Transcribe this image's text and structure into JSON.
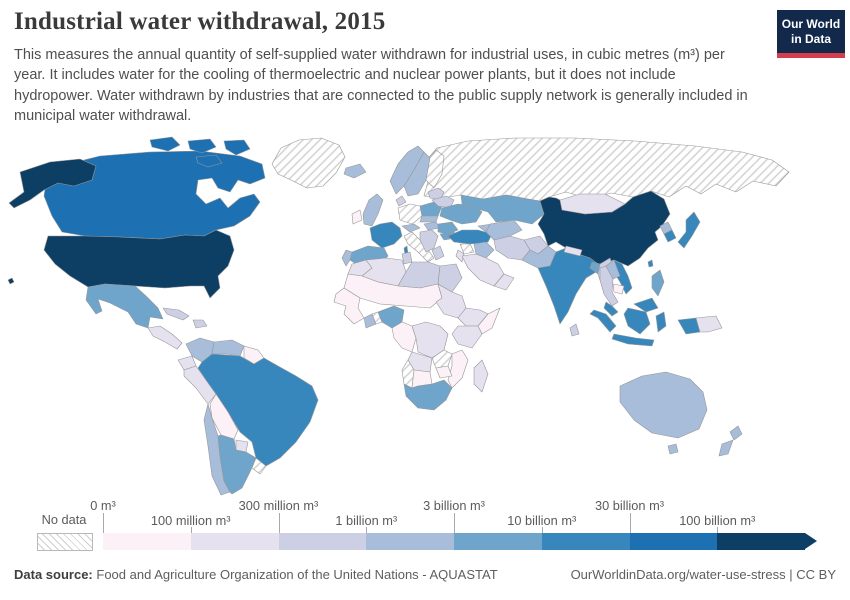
{
  "header": {
    "title": "Industrial water withdrawal, 2015",
    "subtitle": "This measures the annual quantity of self-supplied water withdrawn for industrial uses, in cubic metres (m³) per year. It includes water for the cooling of thermoelectric and nuclear power plants, but it does not include hydropower. Water withdrawn by industries that are connected to the public supply network is generally included in municipal water withdrawal.",
    "logo": {
      "line1": "Our World",
      "line2": "in Data",
      "navy": "#12294b",
      "red": "#d23e4e"
    }
  },
  "legend": {
    "no_data_label": "No data",
    "ticks": [
      {
        "label": "0 m³",
        "row": "top"
      },
      {
        "label": "100 million m³",
        "row": "bottom"
      },
      {
        "label": "300 million m³",
        "row": "top"
      },
      {
        "label": "1 billion m³",
        "row": "bottom"
      },
      {
        "label": "3 billion m³",
        "row": "top"
      },
      {
        "label": "10 billion m³",
        "row": "bottom"
      },
      {
        "label": "30 billion m³",
        "row": "top"
      },
      {
        "label": "100 billion m³",
        "row": "bottom"
      }
    ],
    "bin_colors": [
      "#fcf1f7",
      "#e6e1ef",
      "#cdcfe5",
      "#a7bdda",
      "#6fa4cb",
      "#3787bd",
      "#1d71b3",
      "#0d3e64"
    ]
  },
  "footer": {
    "source_label": "Data source:",
    "source_text": "Food and Agriculture Organization of the United Nations - AQUASTAT",
    "link_text": "OurWorldinData.org/water-use-stress",
    "separator": "|",
    "license": "CC BY"
  },
  "chart_data": {
    "type": "choropleth_map",
    "title": "Industrial water withdrawal, 2015",
    "unit": "m³ per year",
    "year": 2015,
    "bin_ranges": [
      "0–100 million m³",
      "100–300 million m³",
      "300 million–1 billion m³",
      "1–3 billion m³",
      "3–10 billion m³",
      "10–30 billion m³",
      "30–100 billion m³",
      "100 billion m³ and over"
    ],
    "no_data_style": "white with gray diagonal hatching",
    "countries": {
      "usa": {
        "name": "United States",
        "bin": 8
      },
      "canada": {
        "name": "Canada",
        "bin": 7
      },
      "greenland": {
        "name": "Greenland",
        "bin": "no-data"
      },
      "mexico": {
        "name": "Mexico",
        "bin": 5
      },
      "central-america": {
        "name": "Central America",
        "bin": 2
      },
      "cuba": {
        "name": "Cuba",
        "bin": 3
      },
      "hispaniola": {
        "name": "Hispaniola",
        "bin": 3
      },
      "colombia": {
        "name": "Colombia",
        "bin": 4
      },
      "venezuela": {
        "name": "Venezuela",
        "bin": 4
      },
      "guyanas": {
        "name": "Guyanas",
        "bin": 1
      },
      "ecuador": {
        "name": "Ecuador",
        "bin": 2
      },
      "peru": {
        "name": "Peru",
        "bin": 2
      },
      "brazil": {
        "name": "Brazil",
        "bin": 6
      },
      "bolivia": {
        "name": "Bolivia",
        "bin": 1
      },
      "paraguay": {
        "name": "Paraguay",
        "bin": 2
      },
      "chile": {
        "name": "Chile",
        "bin": 4
      },
      "argentina": {
        "name": "Argentina",
        "bin": 5
      },
      "uruguay": {
        "name": "Uruguay",
        "bin": "no-data"
      },
      "iceland": {
        "name": "Iceland",
        "bin": 4
      },
      "uk": {
        "name": "United Kingdom",
        "bin": 4
      },
      "ireland": {
        "name": "Ireland",
        "bin": 1
      },
      "norway": {
        "name": "Norway",
        "bin": 4
      },
      "sweden": {
        "name": "Sweden",
        "bin": 4
      },
      "finland": {
        "name": "Finland",
        "bin": "no-data"
      },
      "denmark": {
        "name": "Denmark",
        "bin": 3
      },
      "germany": {
        "name": "Germany",
        "bin": "no-data"
      },
      "france": {
        "name": "France",
        "bin": 6
      },
      "spain": {
        "name": "Spain",
        "bin": 5
      },
      "portugal": {
        "name": "Portugal",
        "bin": 4
      },
      "italy": {
        "name": "Italy",
        "bin": "no-data"
      },
      "central-europe": {
        "name": "Switzerland / Austria",
        "bin": 4
      },
      "poland": {
        "name": "Poland",
        "bin": 5
      },
      "czech-slovakia": {
        "name": "Czechia / Slovakia",
        "bin": 4
      },
      "hungary": {
        "name": "Hungary",
        "bin": 4
      },
      "balkans": {
        "name": "Western Balkans",
        "bin": 3
      },
      "greece": {
        "name": "Greece",
        "bin": 3
      },
      "romania": {
        "name": "Romania",
        "bin": 5
      },
      "bulgaria": {
        "name": "Bulgaria",
        "bin": 5
      },
      "baltics": {
        "name": "Baltic states",
        "bin": 3
      },
      "belarus": {
        "name": "Belarus",
        "bin": 3
      },
      "ukraine": {
        "name": "Ukraine",
        "bin": 5
      },
      "turkey": {
        "name": "Turkey",
        "bin": 6
      },
      "caucasus": {
        "name": "Caucasus",
        "bin": 4
      },
      "syria": {
        "name": "Syria",
        "bin": "no-data"
      },
      "iraq": {
        "name": "Iraq",
        "bin": 4
      },
      "iran": {
        "name": "Iran",
        "bin": 3
      },
      "saudi-arabia": {
        "name": "Saudi Arabia",
        "bin": 2
      },
      "yemen-oman": {
        "name": "Yemen / Oman",
        "bin": 2
      },
      "jordan-israel": {
        "name": "Jordan / Israel",
        "bin": 2
      },
      "morocco": {
        "name": "Morocco",
        "bin": 2
      },
      "algeria": {
        "name": "Algeria",
        "bin": 2
      },
      "tunisia": {
        "name": "Tunisia",
        "bin": 3
      },
      "libya": {
        "name": "Libya",
        "bin": 3
      },
      "egypt": {
        "name": "Egypt",
        "bin": 3
      },
      "sahel": {
        "name": "Mauritania / Mali / Niger / Chad",
        "bin": 1
      },
      "west-africa": {
        "name": "Senegal / Guinea coast",
        "bin": 1
      },
      "ghana": {
        "name": "Ghana",
        "bin": 4
      },
      "benin-togo": {
        "name": "Benin / Togo",
        "bin": "no-data"
      },
      "nigeria": {
        "name": "Nigeria",
        "bin": 5
      },
      "cameroon-congo": {
        "name": "Cameroon / Congo",
        "bin": 1
      },
      "sudan": {
        "name": "Sudan",
        "bin": 2
      },
      "ethiopia": {
        "name": "Ethiopia",
        "bin": 2
      },
      "somalia": {
        "name": "Somalia",
        "bin": 1
      },
      "kenya-tanzania": {
        "name": "Kenya / Tanzania",
        "bin": 2
      },
      "drc": {
        "name": "Democratic Republic of Congo",
        "bin": 2
      },
      "angola": {
        "name": "Angola",
        "bin": 2
      },
      "zambia": {
        "name": "Zambia",
        "bin": "no-data"
      },
      "zimbabwe": {
        "name": "Zimbabwe",
        "bin": 1
      },
      "mozambique": {
        "name": "Mozambique",
        "bin": 1
      },
      "namibia": {
        "name": "Namibia",
        "bin": "no-data"
      },
      "botswana": {
        "name": "Botswana",
        "bin": 1
      },
      "south-africa": {
        "name": "South Africa",
        "bin": 5
      },
      "madagascar": {
        "name": "Madagascar",
        "bin": 2
      },
      "russia": {
        "name": "Russia",
        "bin": "no-data"
      },
      "kazakhstan": {
        "name": "Kazakhstan",
        "bin": 5
      },
      "uzbekistan-turkmenistan": {
        "name": "Uzbekistan / Turkmenistan",
        "bin": 4
      },
      "afghanistan": {
        "name": "Afghanistan",
        "bin": 3
      },
      "pakistan": {
        "name": "Pakistan",
        "bin": 4
      },
      "india": {
        "name": "India",
        "bin": 6
      },
      "sri-lanka": {
        "name": "Sri Lanka",
        "bin": 3
      },
      "nepal": {
        "name": "Nepal",
        "bin": 2
      },
      "bangladesh": {
        "name": "Bangladesh",
        "bin": 5
      },
      "myanmar": {
        "name": "Myanmar",
        "bin": 3
      },
      "china": {
        "name": "China",
        "bin": 8
      },
      "mongolia": {
        "name": "Mongolia",
        "bin": 2
      },
      "north-korea": {
        "name": "North Korea",
        "bin": 4
      },
      "south-korea": {
        "name": "South Korea",
        "bin": 6
      },
      "japan": {
        "name": "Japan",
        "bin": 6
      },
      "taiwan": {
        "name": "Taiwan",
        "bin": 6
      },
      "vietnam": {
        "name": "Vietnam",
        "bin": 6
      },
      "laos": {
        "name": "Laos",
        "bin": 4
      },
      "thailand": {
        "name": "Thailand",
        "bin": 3
      },
      "cambodia": {
        "name": "Cambodia",
        "bin": 1
      },
      "malaysia": {
        "name": "Malaysia",
        "bin": 6
      },
      "philippines": {
        "name": "Philippines",
        "bin": 5
      },
      "indonesia": {
        "name": "Indonesia",
        "bin": 6
      },
      "papua-new-guinea": {
        "name": "Papua New Guinea",
        "bin": 2
      },
      "australia": {
        "name": "Australia",
        "bin": 4
      },
      "new-zealand": {
        "name": "New Zealand",
        "bin": 4
      }
    }
  }
}
